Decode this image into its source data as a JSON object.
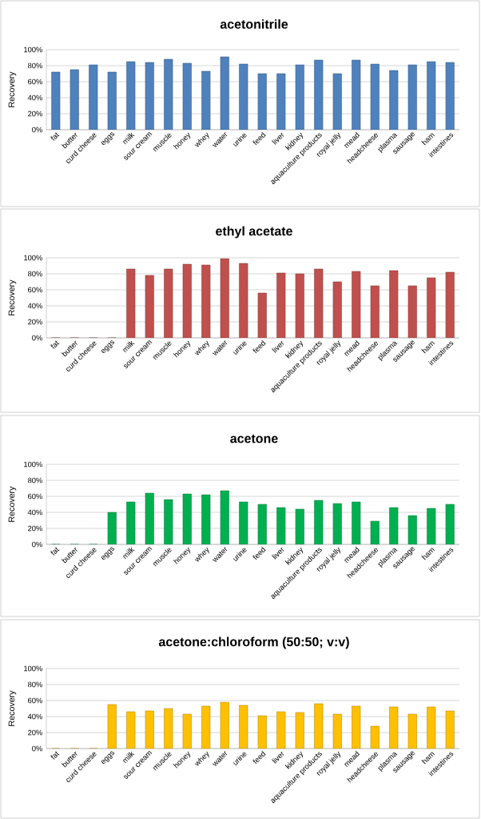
{
  "chart_data": [
    {
      "type": "bar",
      "title": "acetonitrile",
      "ylabel": "Recovery",
      "color": "#4f81bd",
      "grid": "y",
      "categories": [
        "fat",
        "butter",
        "curd cheese",
        "eggs",
        "milk",
        "sour cream",
        "muscle",
        "honey",
        "whey",
        "water",
        "urine",
        "feed",
        "liver",
        "kidney",
        "aquaculture products",
        "royal jelly",
        "mead",
        "headcheese",
        "plasma",
        "sausage",
        "ham",
        "intestines"
      ],
      "values": [
        72,
        75,
        81,
        72,
        85,
        84,
        88,
        83,
        73,
        91,
        82,
        70,
        70,
        81,
        87,
        70,
        87,
        82,
        74,
        81,
        85,
        84
      ],
      "ylim": [
        0,
        100
      ],
      "yticks": [
        {
          "value": 0,
          "label": "0%"
        },
        {
          "value": 20,
          "label": "20%"
        },
        {
          "value": 40,
          "label": "40%"
        },
        {
          "value": 60,
          "label": "60%"
        },
        {
          "value": 80,
          "label": "80%"
        },
        {
          "value": 100,
          "label": "100%"
        }
      ]
    },
    {
      "type": "bar",
      "title": "ethyl acetate",
      "ylabel": "Recovery",
      "color": "#c0504d",
      "grid": "y",
      "categories": [
        "fat",
        "butter",
        "curd cheese",
        "eggs",
        "milk",
        "sour cream",
        "muscle",
        "honey",
        "whey",
        "water",
        "urine",
        "feed",
        "liver",
        "kidney",
        "aquaculture products",
        "royal jelly",
        "mead",
        "headcheese",
        "plasma",
        "sausage",
        "ham",
        "intestines"
      ],
      "values": [
        0,
        0,
        0,
        0,
        86,
        78,
        86,
        92,
        91,
        99,
        93,
        56,
        81,
        80,
        86,
        70,
        83,
        65,
        84,
        65,
        75,
        82
      ],
      "ylim": [
        0,
        100
      ],
      "yticks": [
        {
          "value": 0,
          "label": "0%"
        },
        {
          "value": 20,
          "label": "20%"
        },
        {
          "value": 40,
          "label": "40%"
        },
        {
          "value": 60,
          "label": "60%"
        },
        {
          "value": 80,
          "label": "80%"
        },
        {
          "value": 100,
          "label": "100%"
        }
      ]
    },
    {
      "type": "bar",
      "title": "acetone",
      "ylabel": "Recovery",
      "color": "#00b050",
      "grid": "y",
      "categories": [
        "fat",
        "butter",
        "curd cheese",
        "eggs",
        "milk",
        "sour cream",
        "muscle",
        "honey",
        "whey",
        "water",
        "urine",
        "feed",
        "liver",
        "kidney",
        "aquaculture products",
        "royal jelly",
        "mead",
        "headcheese",
        "plasma",
        "sausage",
        "ham",
        "intestines"
      ],
      "values": [
        0,
        0,
        0,
        40,
        53,
        64,
        56,
        63,
        62,
        67,
        53,
        50,
        46,
        44,
        55,
        51,
        53,
        29,
        46,
        36,
        45,
        50
      ],
      "ylim": [
        0,
        100
      ],
      "yticks": [
        {
          "value": 0,
          "label": "0%"
        },
        {
          "value": 20,
          "label": "20%"
        },
        {
          "value": 40,
          "label": "40%"
        },
        {
          "value": 60,
          "label": "60%"
        },
        {
          "value": 80,
          "label": "80%"
        },
        {
          "value": 100,
          "label": "100%"
        }
      ]
    },
    {
      "type": "bar",
      "title": "acetone:chloroform (50:50; v:v)",
      "ylabel": "Recovery",
      "color": "#ffc000",
      "grid": "y",
      "categories": [
        "fat",
        "butter",
        "curd cheese",
        "eggs",
        "milk",
        "sour cream",
        "muscle",
        "honey",
        "whey",
        "water",
        "urine",
        "feed",
        "liver",
        "kidney",
        "aquaculture products",
        "royal jelly",
        "mead",
        "headcheese",
        "plasma",
        "sausage",
        "ham",
        "intestines"
      ],
      "values": [
        0,
        0,
        0,
        55,
        46,
        47,
        50,
        43,
        53,
        58,
        54,
        41,
        46,
        45,
        56,
        43,
        53,
        28,
        52,
        43,
        52,
        47
      ],
      "ylim": [
        0,
        100
      ],
      "yticks": [
        {
          "value": 0,
          "label": "0%"
        },
        {
          "value": 20,
          "label": "20%"
        },
        {
          "value": 40,
          "label": "40%"
        },
        {
          "value": 60,
          "label": "60%"
        },
        {
          "value": 80,
          "label": "80%"
        },
        {
          "value": 100,
          "label": "100%"
        }
      ]
    }
  ]
}
